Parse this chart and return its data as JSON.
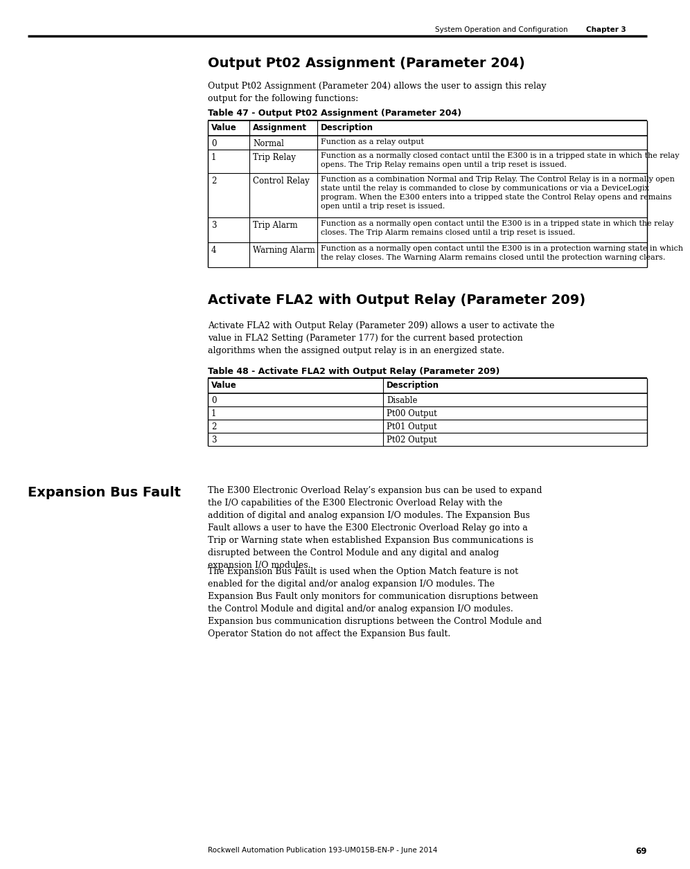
{
  "page_header_left": "System Operation and Configuration",
  "page_header_right": "Chapter 3",
  "page_number": "69",
  "footer_text": "Rockwell Automation Publication 193-UM015B-EN-P - June 2014",
  "section1_title": "Output Pt02 Assignment (Parameter 204)",
  "section1_intro": "Output Pt02 Assignment (Parameter 204) allows the user to assign this relay\noutput for the following functions:",
  "table1_title": "Table 47 - Output Pt02 Assignment (Parameter 204)",
  "table1_rows": [
    [
      "0",
      "Normal",
      "Function as a relay output"
    ],
    [
      "1",
      "Trip Relay",
      "Function as a normally closed contact until the E300 is in a tripped state in which the relay\nopens. The Trip Relay remains open until a trip reset is issued."
    ],
    [
      "2",
      "Control Relay",
      "Function as a combination Normal and Trip Relay. The Control Relay is in a normally open\nstate until the relay is commanded to close by communications or via a DeviceLogix\nprogram. When the E300 enters into a tripped state the Control Relay opens and remains\nopen until a trip reset is issued."
    ],
    [
      "3",
      "Trip Alarm",
      "Function as a normally open contact until the E300 is in a tripped state in which the relay\ncloses. The Trip Alarm remains closed until a trip reset is issued."
    ],
    [
      "4",
      "Warning Alarm",
      "Function as a normally open contact until the E300 is in a protection warning state in which\nthe relay closes. The Warning Alarm remains closed until the protection warning clears."
    ]
  ],
  "section2_title": "Activate FLA2 with Output Relay (Parameter 209)",
  "section2_intro": "Activate FLA2 with Output Relay (Parameter 209) allows a user to activate the\nvalue in FLA2 Setting (Parameter 177) for the current based protection\nalgorithms when the assigned output relay is in an energized state.",
  "table2_title": "Table 48 - Activate FLA2 with Output Relay (Parameter 209)",
  "table2_rows": [
    [
      "0",
      "Disable"
    ],
    [
      "1",
      "Pt00 Output"
    ],
    [
      "2",
      "Pt01 Output"
    ],
    [
      "3",
      "Pt02 Output"
    ]
  ],
  "section3_title": "Expansion Bus Fault",
  "section3_para1": "The E300 Electronic Overload Relay’s expansion bus can be used to expand the I/O capabilities of the E300 Electronic Overload Relay with the addition of digital and analog expansion I/O modules. The Expansion Bus Fault allows a user to have the E300 Electronic Overload Relay go into a Trip or Warning state when established Expansion Bus communications is disrupted between the Control Module and any digital and analog expansion I/O modules.",
  "section3_para2": "The Expansion Bus Fault is used when the Option Match feature is not enabled for the digital and/or analog expansion I/O modules. The Expansion Bus Fault only monitors for communication disruptions between the Control Module and digital and/or analog expansion I/O modules. Expansion bus communication disruptions between the Control Module and Operator Station do not affect the Expansion Bus fault.",
  "bg_color": "#ffffff"
}
